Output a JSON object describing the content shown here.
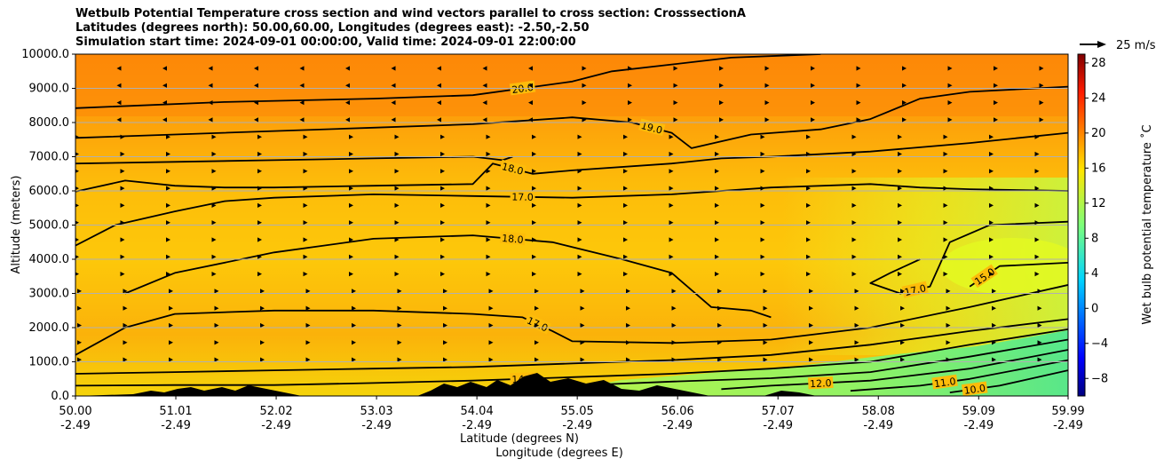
{
  "title": {
    "line1": "Wetbulb Potential Temperature cross section and wind vectors parallel to cross section: CrosssectionA",
    "line2": "Latitudes (degrees north): 50.00,60.00, Longitudes (degrees east): -2.50,-2.50",
    "line3": "Simulation start time: 2024-09-01 00:00:00, Valid time: 2024-09-01 22:00:00"
  },
  "chart_data": {
    "type": "heatmap",
    "title": "Wetbulb Potential Temperature cross section and wind vectors parallel to cross section: CrosssectionA",
    "ylabel": "Altitude (meters)",
    "xlabel": "Latitude (degrees N)",
    "xlabel2": "Longitude (degrees E)",
    "ylim": [
      0,
      10000
    ],
    "xlim": [
      50.0,
      59.99
    ],
    "y_ticks": [
      "0.0",
      "1000.0",
      "2000.0",
      "3000.0",
      "4000.0",
      "5000.0",
      "6000.0",
      "7000.0",
      "8000.0",
      "9000.0",
      "10000.0"
    ],
    "x_ticks": [
      {
        "value": 50.0,
        "lat": "50.00",
        "lon": "-2.49"
      },
      {
        "value": 51.01,
        "lat": "51.01",
        "lon": "-2.49"
      },
      {
        "value": 52.02,
        "lat": "52.02",
        "lon": "-2.49"
      },
      {
        "value": 53.03,
        "lat": "53.03",
        "lon": "-2.49"
      },
      {
        "value": 54.04,
        "lat": "54.04",
        "lon": "-2.49"
      },
      {
        "value": 55.05,
        "lat": "55.05",
        "lon": "-2.49"
      },
      {
        "value": 56.06,
        "lat": "56.06",
        "lon": "-2.49"
      },
      {
        "value": 57.07,
        "lat": "57.07",
        "lon": "-2.49"
      },
      {
        "value": 58.08,
        "lat": "58.08",
        "lon": "-2.49"
      },
      {
        "value": 59.09,
        "lat": "59.09",
        "lon": "-2.49"
      },
      {
        "value": 59.99,
        "lat": "59.99",
        "lon": "-2.49"
      }
    ],
    "colorbar": {
      "label": "Wet bulb potential temperature ˚C",
      "range": [
        -10,
        29
      ],
      "ticks": [
        "−8",
        "−4",
        "0",
        "4",
        "8",
        "12",
        "16",
        "20",
        "24",
        "28"
      ],
      "tick_values": [
        -8,
        -4,
        0,
        4,
        8,
        12,
        16,
        20,
        24,
        28
      ]
    },
    "wind_key": "25 m/s",
    "contours": [
      {
        "level": 20.0,
        "label": "20.0",
        "points": [
          [
            50.0,
            8420
          ],
          [
            51.5,
            8600
          ],
          [
            53.0,
            8700
          ],
          [
            54.0,
            8800
          ],
          [
            55.0,
            9200
          ],
          [
            55.4,
            9500
          ],
          [
            56.0,
            9700
          ],
          [
            56.6,
            9900
          ],
          [
            57.5,
            10000
          ]
        ]
      },
      {
        "level": 19.0,
        "label": "19.0",
        "points": [
          [
            50.0,
            7550
          ],
          [
            51.0,
            7650
          ],
          [
            52.0,
            7750
          ],
          [
            53.0,
            7850
          ],
          [
            54.0,
            7950
          ],
          [
            55.0,
            8150
          ],
          [
            55.6,
            8000
          ],
          [
            56.0,
            7700
          ],
          [
            56.2,
            7250
          ],
          [
            56.8,
            7650
          ],
          [
            57.5,
            7800
          ],
          [
            58.0,
            8100
          ],
          [
            58.5,
            8700
          ],
          [
            59.0,
            8900
          ],
          [
            59.99,
            9050
          ]
        ]
      },
      {
        "level": 18.5,
        "label": "",
        "points": [
          [
            50.0,
            6800
          ],
          [
            51.0,
            6850
          ],
          [
            52.0,
            6900
          ],
          [
            53.0,
            6950
          ],
          [
            54.0,
            7000
          ],
          [
            54.3,
            6900
          ],
          [
            54.4,
            7000
          ]
        ]
      },
      {
        "level": 18.0,
        "label": "18.0",
        "points": [
          [
            50.0,
            5980
          ],
          [
            50.5,
            6300
          ],
          [
            51.0,
            6150
          ],
          [
            51.5,
            6100
          ],
          [
            52.0,
            6100
          ],
          [
            53.0,
            6150
          ],
          [
            54.0,
            6200
          ],
          [
            54.2,
            6800
          ],
          [
            54.6,
            6500
          ],
          [
            55.0,
            6600
          ],
          [
            56.0,
            6800
          ],
          [
            56.5,
            6950
          ],
          [
            57.0,
            7000
          ],
          [
            58.0,
            7150
          ],
          [
            59.0,
            7400
          ],
          [
            59.99,
            7700
          ]
        ]
      },
      {
        "level": 17.0,
        "label": "17.0",
        "points": [
          [
            50.0,
            4400
          ],
          [
            50.4,
            5000
          ],
          [
            51.0,
            5400
          ],
          [
            51.5,
            5700
          ],
          [
            52.0,
            5800
          ],
          [
            53.0,
            5900
          ],
          [
            54.0,
            5850
          ],
          [
            55.0,
            5800
          ],
          [
            56.0,
            5900
          ],
          [
            57.0,
            6100
          ],
          [
            58.0,
            6200
          ],
          [
            58.5,
            6100
          ],
          [
            59.0,
            6050
          ],
          [
            59.99,
            6000
          ]
        ]
      },
      {
        "level": 18.0,
        "label": "18.0",
        "points": [
          [
            50.5,
            3000
          ],
          [
            51.0,
            3600
          ],
          [
            52.0,
            4200
          ],
          [
            53.0,
            4600
          ],
          [
            54.0,
            4700
          ],
          [
            54.8,
            4500
          ],
          [
            55.5,
            4000
          ],
          [
            56.0,
            3600
          ],
          [
            56.4,
            2600
          ],
          [
            56.8,
            2500
          ],
          [
            57.0,
            2300
          ]
        ]
      },
      {
        "level": 17.0,
        "label": "17.0",
        "points": [
          [
            58.5,
            4000
          ],
          [
            58.2,
            3600
          ],
          [
            58.0,
            3300
          ],
          [
            58.3,
            3000
          ],
          [
            58.6,
            3200
          ],
          [
            58.8,
            4500
          ],
          [
            59.2,
            5000
          ],
          [
            59.99,
            5100
          ]
        ]
      },
      {
        "level": 15.0,
        "label": "15.0",
        "points": [
          [
            59.0,
            3200
          ],
          [
            59.3,
            3800
          ],
          [
            59.99,
            3900
          ]
        ]
      },
      {
        "level": 17.0,
        "label": "17.0",
        "points": [
          [
            50.0,
            1200
          ],
          [
            50.5,
            2000
          ],
          [
            51.0,
            2400
          ],
          [
            52.0,
            2500
          ],
          [
            53.0,
            2500
          ],
          [
            54.0,
            2400
          ],
          [
            54.5,
            2300
          ],
          [
            54.8,
            1900
          ],
          [
            55.0,
            1600
          ],
          [
            56.0,
            1550
          ],
          [
            57.0,
            1650
          ],
          [
            58.0,
            2000
          ],
          [
            59.0,
            2600
          ],
          [
            59.99,
            3250
          ]
        ]
      },
      {
        "level": 16.0,
        "label": "",
        "points": [
          [
            50.0,
            650
          ],
          [
            51.0,
            700
          ],
          [
            52.0,
            750
          ],
          [
            53.0,
            800
          ],
          [
            54.0,
            850
          ],
          [
            55.0,
            950
          ],
          [
            56.0,
            1050
          ],
          [
            57.0,
            1200
          ],
          [
            58.0,
            1500
          ],
          [
            59.0,
            1900
          ],
          [
            59.99,
            2250
          ]
        ]
      },
      {
        "level": 14.0,
        "label": "14.0",
        "points": [
          [
            50.0,
            300
          ],
          [
            51.0,
            320
          ],
          [
            52.0,
            320
          ],
          [
            53.0,
            380
          ],
          [
            54.0,
            450
          ],
          [
            55.0,
            550
          ],
          [
            56.0,
            650
          ],
          [
            57.0,
            800
          ],
          [
            58.0,
            1000
          ],
          [
            59.0,
            1500
          ],
          [
            59.99,
            1950
          ]
        ]
      },
      {
        "level": 13.0,
        "label": "",
        "points": [
          [
            55.0,
            300
          ],
          [
            56.0,
            420
          ],
          [
            57.0,
            520
          ],
          [
            58.0,
            700
          ],
          [
            59.0,
            1150
          ],
          [
            59.99,
            1650
          ]
        ]
      },
      {
        "level": 12.0,
        "label": "12.0",
        "points": [
          [
            56.5,
            200
          ],
          [
            57.0,
            300
          ],
          [
            58.0,
            450
          ],
          [
            59.0,
            800
          ],
          [
            59.99,
            1350
          ]
        ]
      },
      {
        "level": 11.0,
        "label": "11.0",
        "points": [
          [
            57.8,
            150
          ],
          [
            58.5,
            300
          ],
          [
            59.0,
            500
          ],
          [
            59.99,
            1050
          ]
        ]
      },
      {
        "level": 10.0,
        "label": "10.0",
        "points": [
          [
            58.8,
            100
          ],
          [
            59.3,
            300
          ],
          [
            59.99,
            750
          ]
        ]
      }
    ]
  }
}
